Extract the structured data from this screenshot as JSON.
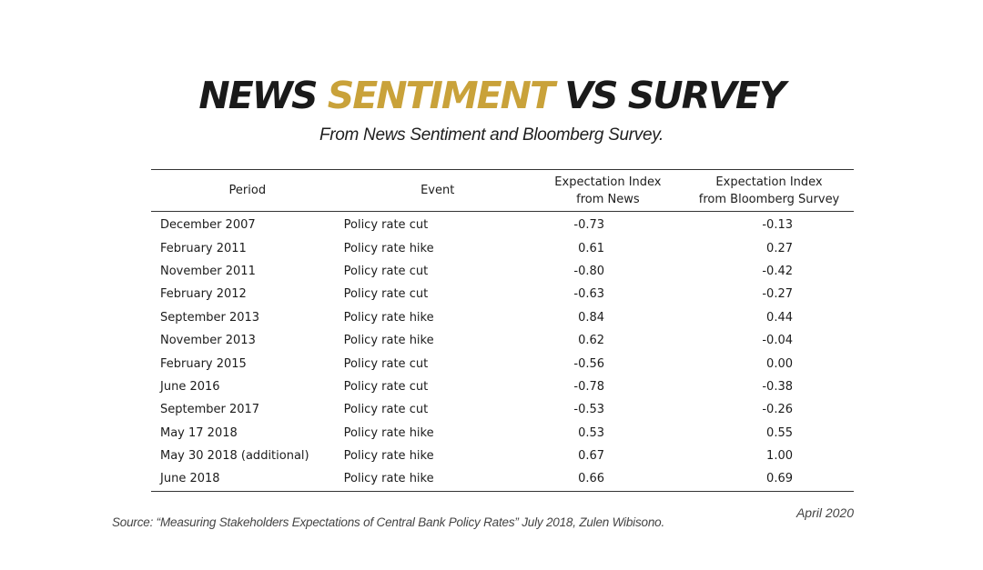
{
  "header": {
    "title_part1": "NEWS ",
    "title_accent": "SENTIMENT",
    "title_part2": " VS SURVEY",
    "subtitle": "From News Sentiment and Bloomberg Survey.",
    "accent_color": "#c9a23a"
  },
  "table": {
    "columns": {
      "period": "Period",
      "event": "Event",
      "news_line1": "Expectation Index",
      "news_line2": "from News",
      "survey_line1": "Expectation Index",
      "survey_line2": "from Bloomberg Survey"
    },
    "rows": [
      {
        "period": "December 2007",
        "event": "Policy rate cut",
        "news": "-0.73",
        "survey": "-0.13"
      },
      {
        "period": "February 2011",
        "event": "Policy rate hike",
        "news": "0.61",
        "survey": "0.27"
      },
      {
        "period": "November 2011",
        "event": "Policy rate cut",
        "news": "-0.80",
        "survey": "-0.42"
      },
      {
        "period": "February 2012",
        "event": "Policy rate cut",
        "news": "-0.63",
        "survey": "-0.27"
      },
      {
        "period": "September 2013",
        "event": "Policy rate hike",
        "news": "0.84",
        "survey": "0.44"
      },
      {
        "period": "November 2013",
        "event": "Policy rate hike",
        "news": "0.62",
        "survey": "-0.04"
      },
      {
        "period": "February 2015",
        "event": "Policy rate cut",
        "news": "-0.56",
        "survey": "0.00"
      },
      {
        "period": "June 2016",
        "event": "Policy rate cut",
        "news": "-0.78",
        "survey": "-0.38"
      },
      {
        "period": "September 2017",
        "event": "Policy rate cut",
        "news": "-0.53",
        "survey": "-0.26"
      },
      {
        "period": "May 17 2018",
        "event": "Policy rate hike",
        "news": "0.53",
        "survey": "0.55"
      },
      {
        "period": "May 30 2018 (additional)",
        "event": "Policy rate hike",
        "news": "0.67",
        "survey": "1.00"
      },
      {
        "period": "June 2018",
        "event": "Policy rate hike",
        "news": "0.66",
        "survey": "0.69"
      }
    ]
  },
  "footer": {
    "source": "Source: “Measuring Stakeholders Expectations of Central Bank Policy Rates” July 2018, Zulen Wibisono.",
    "date": "April 2020"
  }
}
